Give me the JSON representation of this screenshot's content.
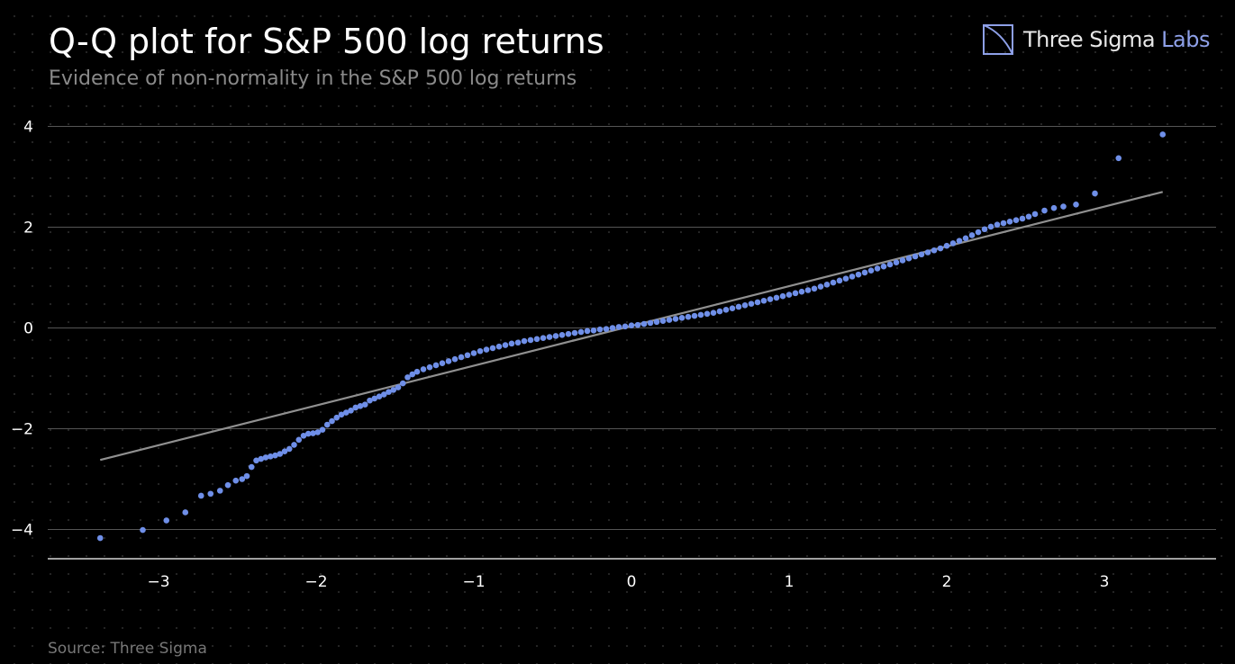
{
  "title": "Q-Q plot for S&P 500 log returns",
  "subtitle": "Evidence of non-normality in the S&P 500 log returns",
  "source": "Source: Three Sigma",
  "logo": {
    "name": "Three Sigma",
    "accent": "Labs",
    "icon": "three-sigma-logo-icon"
  },
  "colors": {
    "points": "#6f8fe8",
    "reference_line": "#909090",
    "grid": "#555555",
    "background": "#000000"
  },
  "chart_data": {
    "type": "scatter",
    "title": "Q-Q plot for S&P 500 log returns",
    "subtitle": "Evidence of non-normality in the S&P 500 log returns",
    "xlabel": "",
    "ylabel": "",
    "xlim": [
      -3.7,
      3.7
    ],
    "ylim": [
      -4.6,
      4.3
    ],
    "xticks": [
      -3,
      -2,
      -1,
      0,
      1,
      2,
      3
    ],
    "yticks": [
      -4,
      -2,
      0,
      2,
      4
    ],
    "xtick_labels": [
      "−3",
      "−2",
      "−1",
      "0",
      "1",
      "2",
      "3"
    ],
    "ytick_labels": [
      "−4",
      "−2",
      "0",
      "2",
      "4"
    ],
    "grid": "horizontal",
    "reference_line": {
      "x": [
        -3.37,
        3.37
      ],
      "y": [
        -2.62,
        2.7
      ]
    },
    "points": {
      "x": [
        -3.37,
        -3.1,
        -2.95,
        -2.83,
        -2.73,
        -2.67,
        -2.61,
        -2.56,
        -2.51,
        -2.47,
        -2.44,
        -2.41,
        -2.38,
        -2.35,
        -2.32,
        -2.29,
        -2.26,
        -2.23,
        -2.2,
        -2.17,
        -2.14,
        -2.11,
        -2.08,
        -2.05,
        -2.02,
        -1.99,
        -1.96,
        -1.93,
        -1.9,
        -1.87,
        -1.84,
        -1.81,
        -1.78,
        -1.75,
        -1.72,
        -1.69,
        -1.66,
        -1.63,
        -1.6,
        -1.57,
        -1.54,
        -1.51,
        -1.48,
        -1.45,
        -1.42,
        -1.39,
        -1.36,
        -1.32,
        -1.28,
        -1.24,
        -1.2,
        -1.16,
        -1.12,
        -1.08,
        -1.04,
        -1.0,
        -0.96,
        -0.92,
        -0.88,
        -0.84,
        -0.8,
        -0.76,
        -0.72,
        -0.68,
        -0.64,
        -0.6,
        -0.56,
        -0.52,
        -0.48,
        -0.44,
        -0.4,
        -0.36,
        -0.32,
        -0.28,
        -0.24,
        -0.2,
        -0.16,
        -0.12,
        -0.08,
        -0.04,
        0.0,
        0.04,
        0.08,
        0.12,
        0.16,
        0.2,
        0.24,
        0.28,
        0.32,
        0.36,
        0.4,
        0.44,
        0.48,
        0.52,
        0.56,
        0.6,
        0.64,
        0.68,
        0.72,
        0.76,
        0.8,
        0.84,
        0.88,
        0.92,
        0.96,
        1.0,
        1.04,
        1.08,
        1.12,
        1.16,
        1.2,
        1.24,
        1.28,
        1.32,
        1.36,
        1.4,
        1.44,
        1.48,
        1.52,
        1.56,
        1.6,
        1.64,
        1.68,
        1.72,
        1.76,
        1.8,
        1.84,
        1.88,
        1.92,
        1.96,
        2.0,
        2.04,
        2.08,
        2.12,
        2.16,
        2.2,
        2.24,
        2.28,
        2.32,
        2.36,
        2.4,
        2.44,
        2.48,
        2.52,
        2.56,
        2.62,
        2.68,
        2.74,
        2.82,
        2.94,
        3.09,
        3.37
      ],
      "y": [
        -4.17,
        -4.01,
        -3.82,
        -3.66,
        -3.33,
        -3.29,
        -3.23,
        -3.12,
        -3.03,
        -3.0,
        -2.94,
        -2.76,
        -2.63,
        -2.6,
        -2.57,
        -2.55,
        -2.53,
        -2.5,
        -2.45,
        -2.4,
        -2.32,
        -2.22,
        -2.14,
        -2.1,
        -2.09,
        -2.07,
        -2.02,
        -1.92,
        -1.85,
        -1.78,
        -1.72,
        -1.68,
        -1.64,
        -1.58,
        -1.55,
        -1.52,
        -1.44,
        -1.4,
        -1.36,
        -1.32,
        -1.27,
        -1.23,
        -1.18,
        -1.1,
        -0.98,
        -0.92,
        -0.87,
        -0.82,
        -0.78,
        -0.74,
        -0.7,
        -0.66,
        -0.62,
        -0.58,
        -0.54,
        -0.5,
        -0.46,
        -0.43,
        -0.4,
        -0.37,
        -0.34,
        -0.31,
        -0.29,
        -0.26,
        -0.24,
        -0.22,
        -0.2,
        -0.18,
        -0.16,
        -0.14,
        -0.12,
        -0.1,
        -0.08,
        -0.06,
        -0.05,
        -0.03,
        -0.02,
        0.0,
        0.02,
        0.03,
        0.05,
        0.06,
        0.08,
        0.1,
        0.12,
        0.14,
        0.16,
        0.18,
        0.2,
        0.22,
        0.24,
        0.26,
        0.28,
        0.3,
        0.33,
        0.36,
        0.39,
        0.42,
        0.45,
        0.48,
        0.51,
        0.54,
        0.57,
        0.6,
        0.63,
        0.66,
        0.69,
        0.72,
        0.75,
        0.78,
        0.82,
        0.86,
        0.9,
        0.94,
        0.98,
        1.02,
        1.06,
        1.1,
        1.14,
        1.18,
        1.22,
        1.26,
        1.3,
        1.34,
        1.38,
        1.42,
        1.46,
        1.5,
        1.54,
        1.58,
        1.63,
        1.68,
        1.73,
        1.78,
        1.84,
        1.9,
        1.96,
        2.01,
        2.05,
        2.08,
        2.11,
        2.14,
        2.17,
        2.21,
        2.26,
        2.33,
        2.38,
        2.41,
        2.45,
        2.67,
        3.37,
        3.84
      ]
    }
  }
}
